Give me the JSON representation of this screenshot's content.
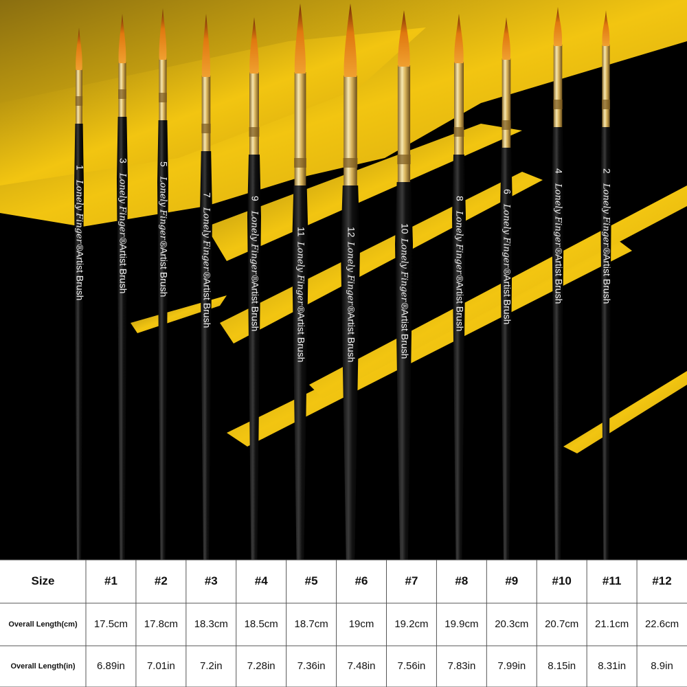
{
  "brushes": [
    {
      "size": "1",
      "brand": "Lonely Finger®",
      "label": "Artist Brush"
    },
    {
      "size": "3",
      "brand": "Lonely Finger®",
      "label": "Artist Brush"
    },
    {
      "size": "5",
      "brand": "Lonely Finger®",
      "label": "Artist Brush"
    },
    {
      "size": "7",
      "brand": "Lonely Finger®",
      "label": "Artist Brush"
    },
    {
      "size": "9",
      "brand": "Lonely Finger®",
      "label": "Artist Brush"
    },
    {
      "size": "11",
      "brand": "Lonely Finger®",
      "label": "Artist Brush"
    },
    {
      "size": "12",
      "brand": "Lonely Finger®",
      "label": "Artist Brush"
    },
    {
      "size": "10",
      "brand": "Lonely Finger®",
      "label": "Artist Brush"
    },
    {
      "size": "8",
      "brand": "Lonely Finger®",
      "label": "Artist Brush"
    },
    {
      "size": "6",
      "brand": "Lonely Finger®",
      "label": "Artist Brush"
    },
    {
      "size": "4",
      "brand": "Lonely Finger®",
      "label": "Artist Brush"
    },
    {
      "size": "2",
      "brand": "Lonely Finger®",
      "label": "Artist Brush"
    }
  ],
  "table": {
    "header": [
      "Size",
      "#1",
      "#2",
      "#3",
      "#4",
      "#5",
      "#6",
      "#7",
      "#8",
      "#9",
      "#10",
      "#11",
      "#12"
    ],
    "rows": [
      [
        "Overall Length(cm)",
        "17.5cm",
        "17.8cm",
        "18.3cm",
        "18.5cm",
        "18.7cm",
        "19cm",
        "19.2cm",
        "19.9cm",
        "20.3cm",
        "20.7cm",
        "21.1cm",
        "22.6cm"
      ],
      [
        "Overall Length(in)",
        "6.89in",
        "7.01in",
        "7.2in",
        "7.28in",
        "7.36in",
        "7.48in",
        "7.56in",
        "7.83in",
        "7.99in",
        "8.15in",
        "8.31in",
        "8.9in"
      ]
    ]
  }
}
